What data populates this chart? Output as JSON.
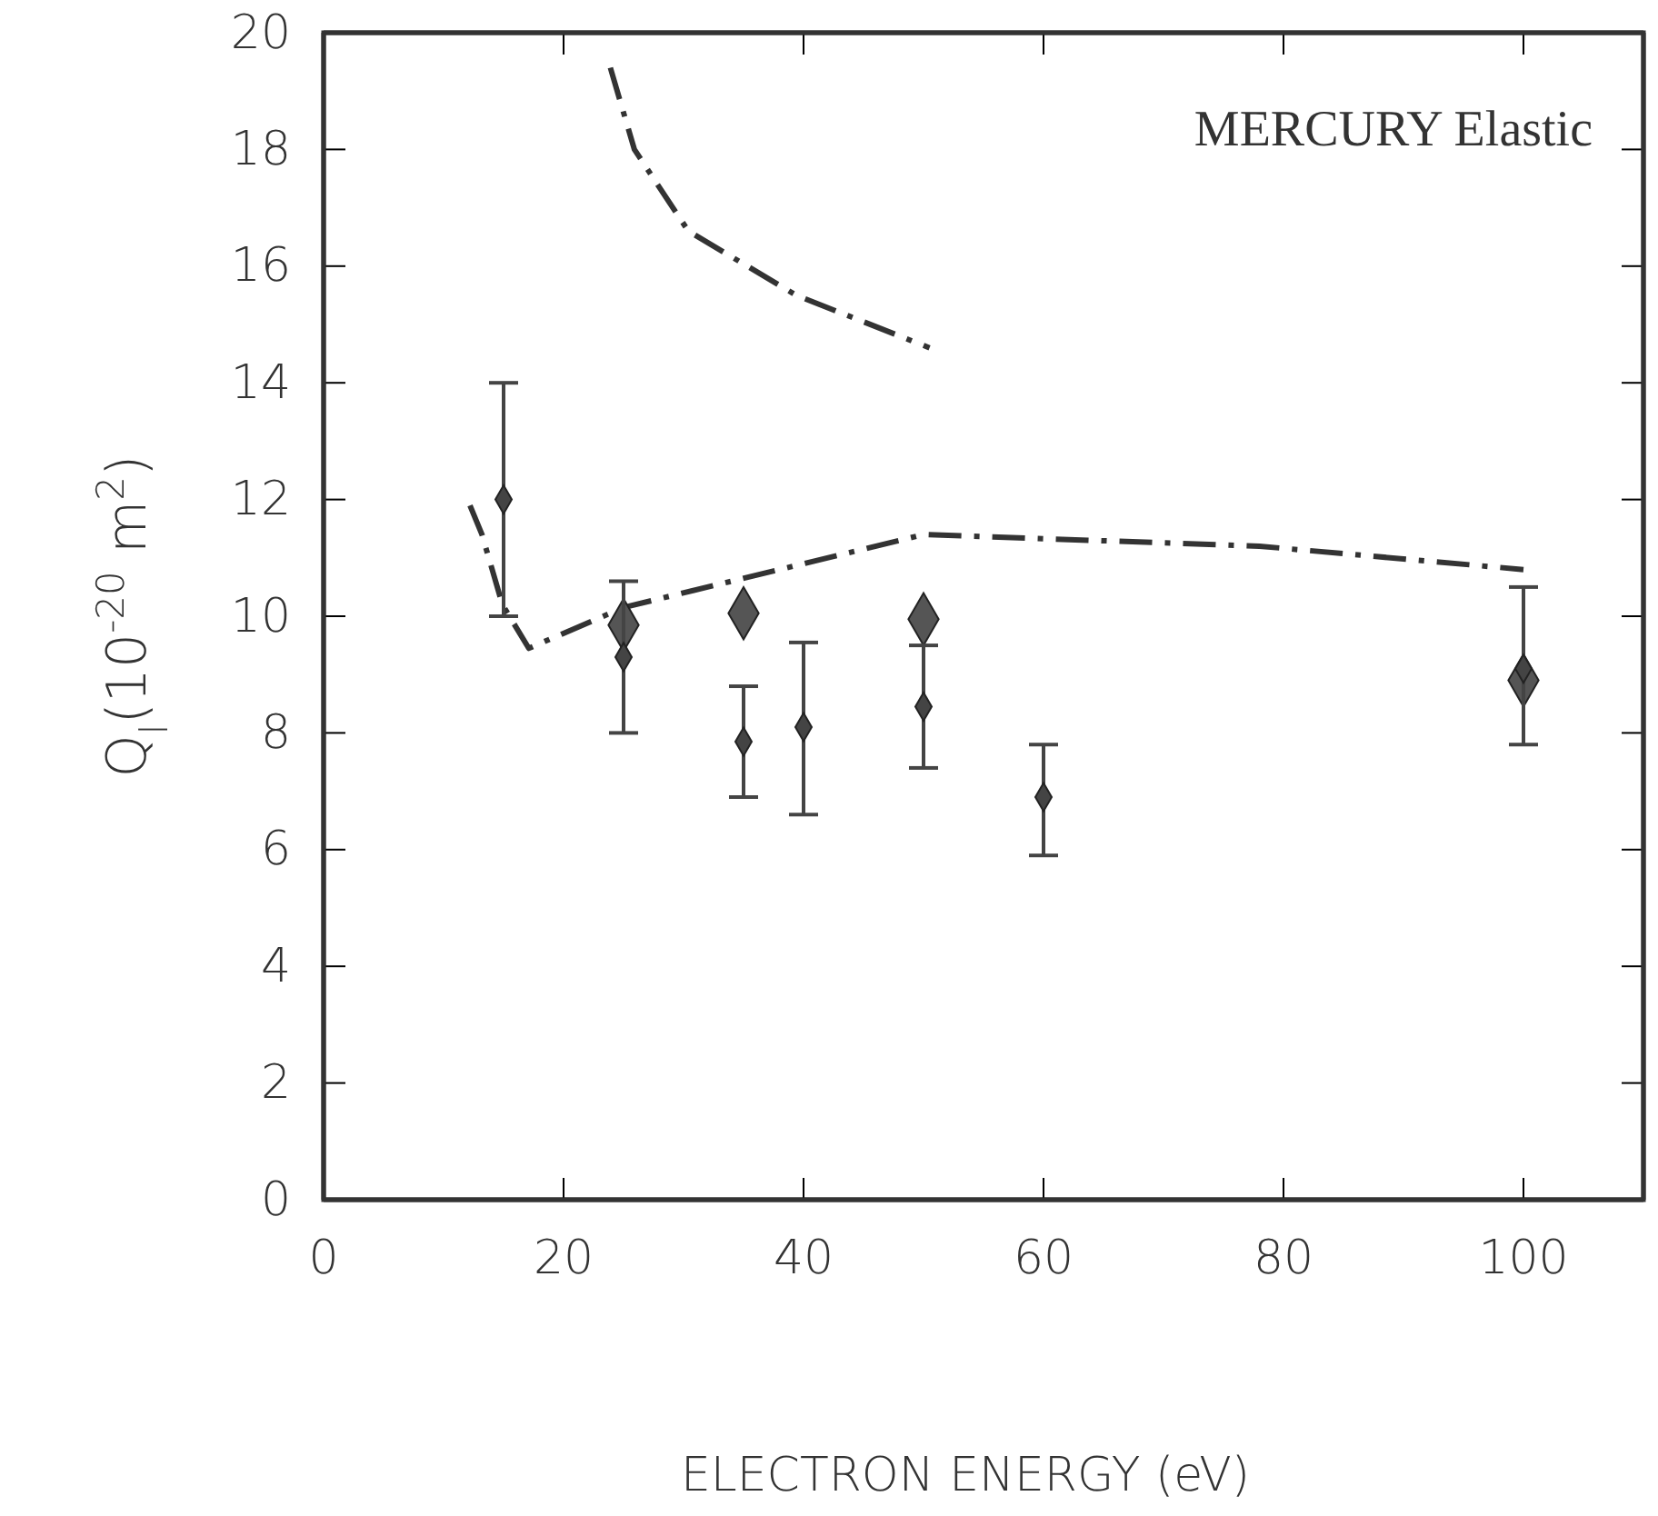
{
  "chart_data": {
    "type": "scatter",
    "title": "MERCURY Elastic",
    "xlabel": "ELECTRON ENERGY (eV)",
    "ylabel": "Q$_{l}$(10$^{-20}$ m$^{2}$)",
    "xlim": [
      0,
      110
    ],
    "xticks": [
      0,
      20,
      40,
      60,
      80,
      100
    ],
    "ylim": [
      0,
      20
    ],
    "yticks": [
      0,
      2,
      4,
      6,
      8,
      10,
      12,
      14,
      16,
      18,
      20
    ],
    "grid": false,
    "marker": "diamond",
    "series": [
      {
        "color": "#444444",
        "x": [
          15,
          25,
          35,
          40,
          50,
          60,
          100
        ],
        "values": [
          12.0,
          9.3,
          7.85,
          8.1,
          8.45,
          6.9,
          9.1
        ],
        "errors": [
          [
            10.0,
            14.0
          ],
          [
            8.0,
            10.6
          ],
          [
            6.9,
            8.8
          ],
          [
            6.6,
            9.55
          ],
          [
            7.4,
            9.5
          ],
          [
            5.9,
            7.8
          ],
          [
            7.8,
            10.5
          ]
        ]
      },
      {
        "color": "#555555",
        "x": [
          25,
          35,
          50,
          100
        ],
        "values": [
          9.85,
          10.05,
          9.95,
          8.9
        ]
      },
      {
        "type": "line",
        "color": "#333333",
        "marker": "none",
        "line_style": "dashed",
        "x": [
          12.2,
          13.2,
          14.9,
          17.1,
          25,
          50,
          78,
          100
        ],
        "values": [
          11.9,
          11.4,
          10.2,
          9.45,
          10.15,
          11.4,
          11.2,
          10.8
        ]
      },
      {
        "type": "line",
        "color": "#333333",
        "marker": "none",
        "line_style": "dashed",
        "x": [
          23.9,
          25.9,
          30.4,
          39.4,
          50.5
        ],
        "values": [
          19.4,
          18.0,
          16.6,
          15.5,
          14.6
        ]
      }
    ]
  }
}
